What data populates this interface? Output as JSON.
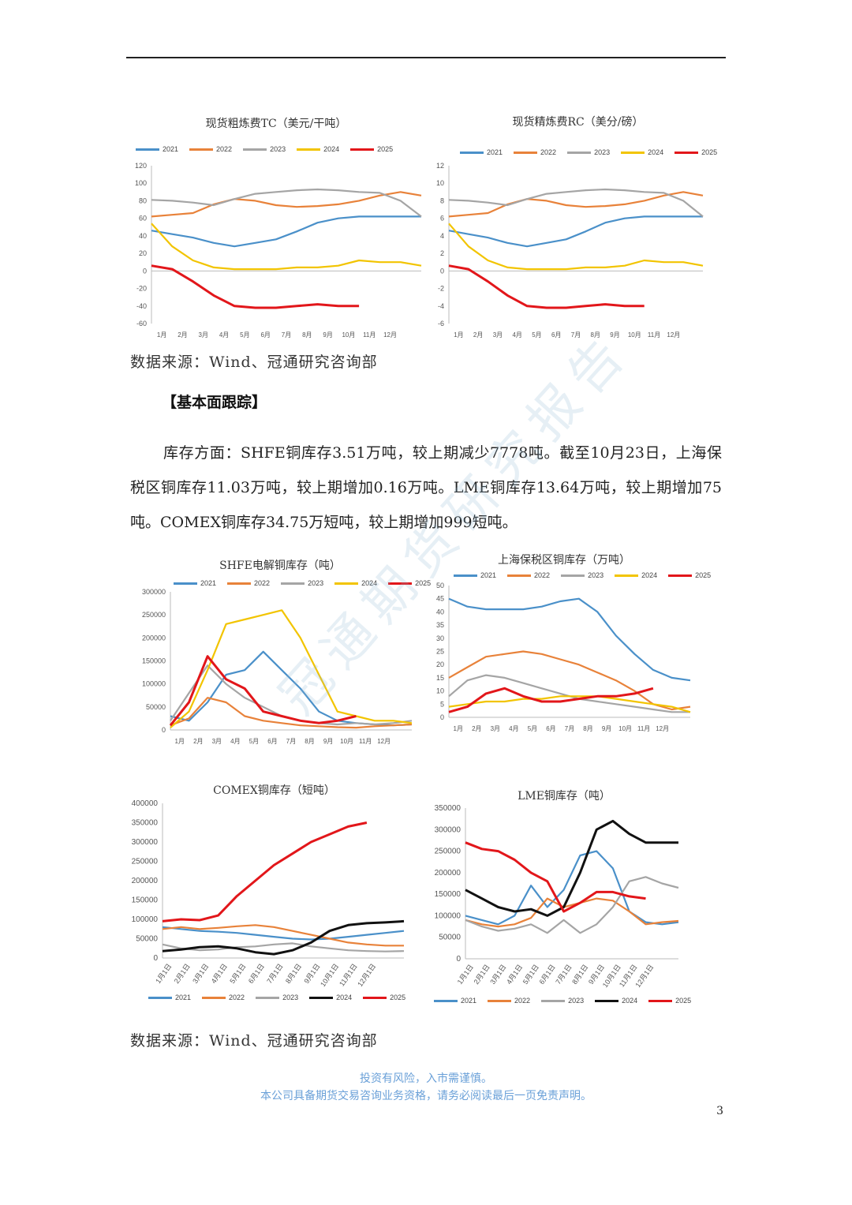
{
  "colors": {
    "2021": "#4a90c9",
    "2022": "#e8823a",
    "2023": "#a5a5a5",
    "2024": "#f2c400",
    "2025": "#e2161a",
    "2024_black": "#111111"
  },
  "months_cn": [
    "1月",
    "2月",
    "3月",
    "4月",
    "5月",
    "6月",
    "7月",
    "8月",
    "9月",
    "10月",
    "11月",
    "12月"
  ],
  "dates_cn": [
    "1月1日",
    "2月1日",
    "3月1日",
    "4月1日",
    "5月1日",
    "6月1日",
    "7月1日",
    "8月1日",
    "9月1日",
    "10月1日",
    "11月1日",
    "12月1日"
  ],
  "source1": "数据来源：Wind、冠通研究咨询部",
  "section_title": "【基本面跟踪】",
  "paragraph": "库存方面：SHFE铜库存3.51万吨，较上期减少7778吨。截至10月23日，上海保税区铜库存11.03万吨，较上期增加0.16万吨。LME铜库存13.64万吨，较上期增加75吨。COMEX铜库存34.75万短吨，较上期增加999短吨。",
  "source2": "数据来源：Wind、冠通研究咨询部",
  "footer_line1": "投资有风险，入市需谨慎。",
  "footer_line2": "本公司具备期货交易咨询业务资格，请务必阅读最后一页免责声明。",
  "page_number": "3",
  "watermark": "冠通期货研究报告",
  "chart_data": [
    {
      "id": "tc",
      "type": "line",
      "title": "现货粗炼费TC（美元/干吨）",
      "ylim": [
        -60,
        120
      ],
      "yticks": [
        "120",
        "100",
        "80",
        "60",
        "40",
        "20",
        "0",
        "-20",
        "-40",
        "-60"
      ],
      "xticks": "months",
      "series": [
        {
          "name": "2021",
          "values": [
            46,
            42,
            38,
            32,
            28,
            32,
            36,
            45,
            55,
            60,
            62,
            62,
            62,
            62
          ]
        },
        {
          "name": "2022",
          "values": [
            62,
            64,
            66,
            76,
            82,
            80,
            75,
            73,
            74,
            76,
            80,
            86,
            90,
            86
          ]
        },
        {
          "name": "2023",
          "values": [
            81,
            80,
            78,
            75,
            82,
            88,
            90,
            92,
            93,
            92,
            90,
            89,
            80,
            62
          ]
        },
        {
          "name": "2024",
          "values": [
            54,
            28,
            12,
            4,
            2,
            2,
            2,
            4,
            4,
            6,
            12,
            10,
            10,
            6
          ]
        },
        {
          "name": "2025",
          "values": [
            6,
            2,
            -12,
            -28,
            -40,
            -42,
            -42,
            -40,
            -38,
            -40,
            -40,
            null,
            null,
            null
          ]
        }
      ]
    },
    {
      "id": "rc",
      "type": "line",
      "title": "现货精炼费RC（美分/磅）",
      "ylim": [
        -6,
        12
      ],
      "yticks": [
        "12",
        "10",
        "8",
        "6",
        "4",
        "2",
        "0",
        "-2",
        "-4",
        "-6"
      ],
      "xticks": "months",
      "series": [
        {
          "name": "2021",
          "values": [
            4.6,
            4.2,
            3.8,
            3.2,
            2.8,
            3.2,
            3.6,
            4.5,
            5.5,
            6.0,
            6.2,
            6.2,
            6.2,
            6.2
          ]
        },
        {
          "name": "2022",
          "values": [
            6.2,
            6.4,
            6.6,
            7.6,
            8.2,
            8.0,
            7.5,
            7.3,
            7.4,
            7.6,
            8.0,
            8.6,
            9.0,
            8.6
          ]
        },
        {
          "name": "2023",
          "values": [
            8.1,
            8.0,
            7.8,
            7.5,
            8.2,
            8.8,
            9.0,
            9.2,
            9.3,
            9.2,
            9.0,
            8.9,
            8.0,
            6.2
          ]
        },
        {
          "name": "2024",
          "values": [
            5.4,
            2.8,
            1.2,
            0.4,
            0.2,
            0.2,
            0.2,
            0.4,
            0.4,
            0.6,
            1.2,
            1.0,
            1.0,
            0.6
          ]
        },
        {
          "name": "2025",
          "values": [
            0.6,
            0.2,
            -1.2,
            -2.8,
            -4.0,
            -4.2,
            -4.2,
            -4.0,
            -3.8,
            -4.0,
            -4.0,
            null,
            null,
            null
          ]
        }
      ]
    },
    {
      "id": "shfe",
      "type": "line",
      "title": "SHFE电解铜库存（吨）",
      "ylim": [
        0,
        300000
      ],
      "yticks": [
        "300000",
        "250000",
        "200000",
        "150000",
        "100000",
        "50000",
        "0"
      ],
      "xticks": "months",
      "series": [
        {
          "name": "2021",
          "values": [
            30000,
            20000,
            60000,
            120000,
            130000,
            170000,
            130000,
            90000,
            40000,
            20000,
            15000,
            12000,
            10000,
            12000
          ]
        },
        {
          "name": "2022",
          "values": [
            10000,
            25000,
            70000,
            60000,
            30000,
            20000,
            15000,
            10000,
            8000,
            6000,
            5000,
            8000,
            10000,
            12000
          ]
        },
        {
          "name": "2023",
          "values": [
            20000,
            80000,
            140000,
            100000,
            70000,
            50000,
            30000,
            20000,
            15000,
            12000,
            15000,
            12000,
            15000,
            20000
          ]
        },
        {
          "name": "2024",
          "values": [
            5000,
            40000,
            130000,
            230000,
            240000,
            250000,
            260000,
            200000,
            120000,
            40000,
            30000,
            20000,
            20000,
            15000
          ]
        },
        {
          "name": "2025",
          "values": [
            10000,
            60000,
            160000,
            110000,
            90000,
            40000,
            30000,
            20000,
            15000,
            20000,
            30000,
            null,
            null,
            null
          ]
        }
      ]
    },
    {
      "id": "sh_bonded",
      "type": "line",
      "title": "上海保税区铜库存（万吨）",
      "ylim": [
        0,
        50
      ],
      "yticks": [
        "50",
        "45",
        "40",
        "35",
        "30",
        "25",
        "20",
        "15",
        "10",
        "5",
        "0"
      ],
      "xticks": "months",
      "series": [
        {
          "name": "2021",
          "values": [
            45,
            42,
            41,
            41,
            41,
            42,
            44,
            45,
            40,
            31,
            24,
            18,
            15,
            14
          ]
        },
        {
          "name": "2022",
          "values": [
            15,
            19,
            23,
            24,
            25,
            24,
            22,
            20,
            17,
            14,
            10,
            5,
            3,
            4
          ]
        },
        {
          "name": "2023",
          "values": [
            8,
            14,
            16,
            15,
            13,
            11,
            9,
            7,
            6,
            5,
            4,
            3,
            2,
            2
          ]
        },
        {
          "name": "2024",
          "values": [
            4,
            5,
            6,
            6,
            7,
            7,
            8,
            8,
            8,
            7,
            6,
            5,
            4,
            2
          ]
        },
        {
          "name": "2025",
          "values": [
            2,
            4,
            9,
            11,
            8,
            6,
            6,
            7,
            8,
            8,
            9,
            11,
            null,
            null
          ]
        }
      ]
    },
    {
      "id": "comex",
      "type": "line",
      "title": "COMEX铜库存（短吨）",
      "ylim": [
        0,
        400000
      ],
      "yticks": [
        "400000",
        "350000",
        "300000",
        "250000",
        "200000",
        "150000",
        "100000",
        "50000",
        "0"
      ],
      "xticks": "dates",
      "series": [
        {
          "name": "2021",
          "values": [
            80000,
            75000,
            70000,
            68000,
            65000,
            60000,
            55000,
            50000,
            48000,
            50000,
            55000,
            60000,
            65000,
            70000
          ]
        },
        {
          "name": "2022",
          "values": [
            75000,
            80000,
            75000,
            78000,
            82000,
            85000,
            80000,
            70000,
            60000,
            50000,
            40000,
            35000,
            32000,
            32000
          ]
        },
        {
          "name": "2023",
          "values": [
            35000,
            25000,
            20000,
            22000,
            28000,
            30000,
            35000,
            38000,
            30000,
            25000,
            20000,
            18000,
            17000,
            18000
          ]
        },
        {
          "name": "2024",
          "values": [
            18000,
            22000,
            28000,
            30000,
            25000,
            15000,
            10000,
            20000,
            40000,
            70000,
            85000,
            90000,
            92000,
            95000
          ]
        },
        {
          "name": "2025",
          "values": [
            95000,
            100000,
            98000,
            110000,
            160000,
            200000,
            240000,
            270000,
            300000,
            320000,
            340000,
            350000,
            null,
            null
          ]
        }
      ]
    },
    {
      "id": "lme",
      "type": "line",
      "title": "LME铜库存（吨）",
      "ylim": [
        0,
        350000
      ],
      "yticks": [
        "350000",
        "300000",
        "250000",
        "200000",
        "150000",
        "100000",
        "50000",
        "0"
      ],
      "xticks": "dates",
      "series": [
        {
          "name": "2021",
          "values": [
            100000,
            90000,
            80000,
            100000,
            170000,
            120000,
            160000,
            240000,
            250000,
            210000,
            110000,
            85000,
            80000,
            85000
          ]
        },
        {
          "name": "2022",
          "values": [
            90000,
            80000,
            75000,
            80000,
            95000,
            140000,
            120000,
            130000,
            140000,
            135000,
            110000,
            80000,
            85000,
            88000
          ]
        },
        {
          "name": "2023",
          "values": [
            90000,
            75000,
            65000,
            70000,
            80000,
            60000,
            90000,
            60000,
            80000,
            120000,
            180000,
            190000,
            175000,
            165000
          ]
        },
        {
          "name": "2024",
          "values": [
            160000,
            140000,
            120000,
            110000,
            115000,
            100000,
            120000,
            200000,
            300000,
            320000,
            290000,
            270000,
            270000,
            270000
          ]
        },
        {
          "name": "2025",
          "values": [
            270000,
            255000,
            250000,
            230000,
            200000,
            180000,
            110000,
            130000,
            155000,
            155000,
            145000,
            140000,
            null,
            null
          ]
        }
      ]
    }
  ]
}
